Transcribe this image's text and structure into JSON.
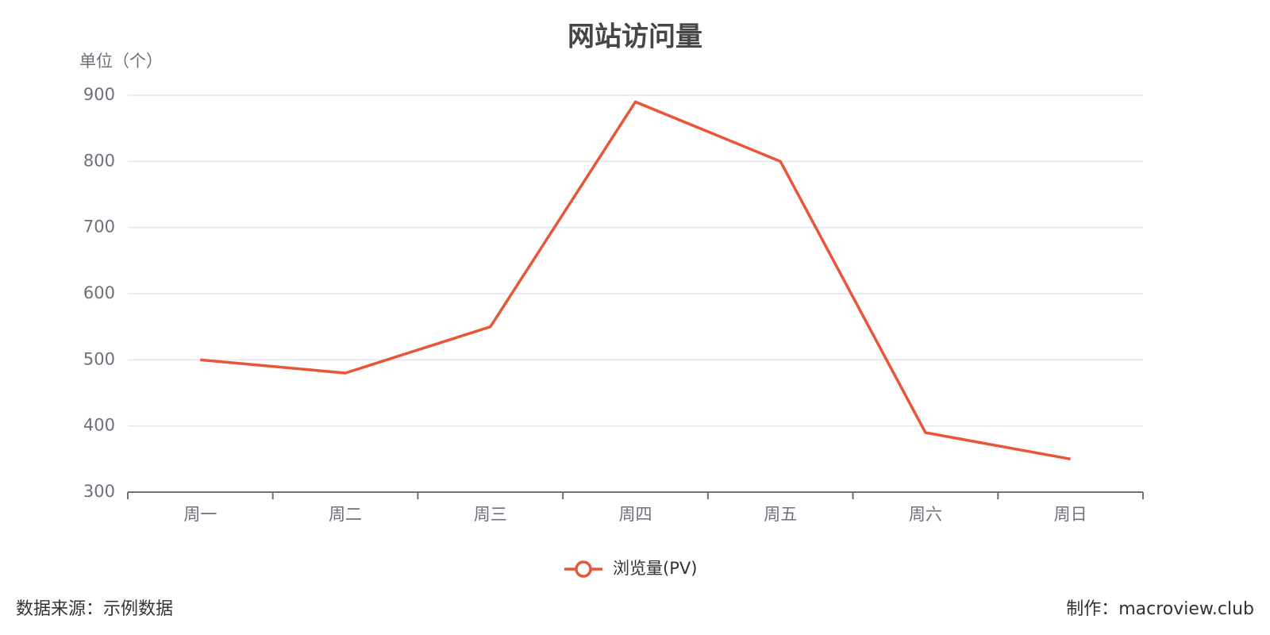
{
  "chart_data": {
    "type": "line",
    "title": "网站访问量",
    "y_axis_label": "单位（个）",
    "categories": [
      "周一",
      "周二",
      "周三",
      "周四",
      "周五",
      "周六",
      "周日"
    ],
    "series": [
      {
        "name": "浏览量(PV)",
        "color": "#e8563a",
        "values": [
          500,
          480,
          550,
          890,
          800,
          390,
          350
        ]
      }
    ],
    "ylim": [
      300,
      900
    ],
    "yticks": [
      300,
      400,
      500,
      600,
      700,
      800,
      900
    ],
    "grid": true,
    "legend": "bottom",
    "source": "数据来源：示例数据",
    "credit": "制作：macroview.club"
  }
}
